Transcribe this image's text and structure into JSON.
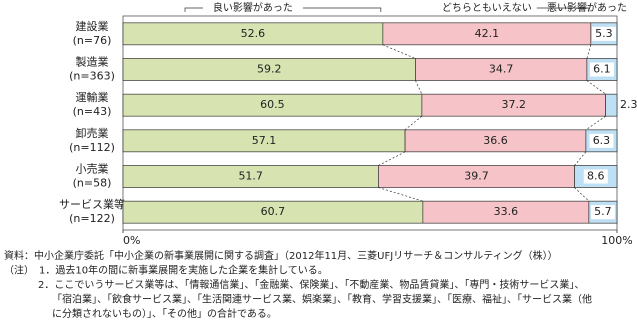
{
  "chart_data": {
    "type": "stacked-bar-horizontal",
    "categories": [
      "建設業",
      "製造業",
      "運輸業",
      "卸売業",
      "小売業",
      "サービス業等"
    ],
    "category_counts": [
      "(n=76)",
      "(n=363)",
      "(n=43)",
      "(n=112)",
      "(n=58)",
      "(n=122)"
    ],
    "series": [
      {
        "name": "良い影響があった",
        "color": "#d7e4b2",
        "values": [
          52.6,
          59.2,
          60.5,
          57.1,
          51.7,
          60.7
        ]
      },
      {
        "name": "どちらともいえない",
        "color": "#f6c4c8",
        "values": [
          42.1,
          34.7,
          37.2,
          36.6,
          39.7,
          33.6
        ]
      },
      {
        "name": "悪い影響があった",
        "color": "#bfe0f4",
        "values": [
          5.3,
          6.1,
          2.3,
          6.3,
          8.6,
          5.7
        ]
      }
    ],
    "xlim": [
      0,
      100
    ],
    "xticks": [
      {
        "value": 0,
        "label": "0%"
      },
      {
        "value": 100,
        "label": "100%"
      }
    ],
    "notes": [
      "資料：中小企業庁委託「中小企業の新事業展開に関する調査」（2012年11月、三菱UFJリサーチ＆コンサルティング（株））",
      "（注）　1．過去10年の間に新事業展開を実施した企業を集計している。",
      "2．ここでいうサービス業等は、「情報通信業」、「金融業、保険業」、「不動産業、物品賃貸業」、「専門・技術サービス業」、",
      "「宿泊業」、「飲食サービス業」、「生活関連サービス業、娯楽業」、「教育、学習支援業」、「医療、福祉」、「サービス業（他",
      "に分類されないもの）」、「その他」の合計である。"
    ]
  }
}
